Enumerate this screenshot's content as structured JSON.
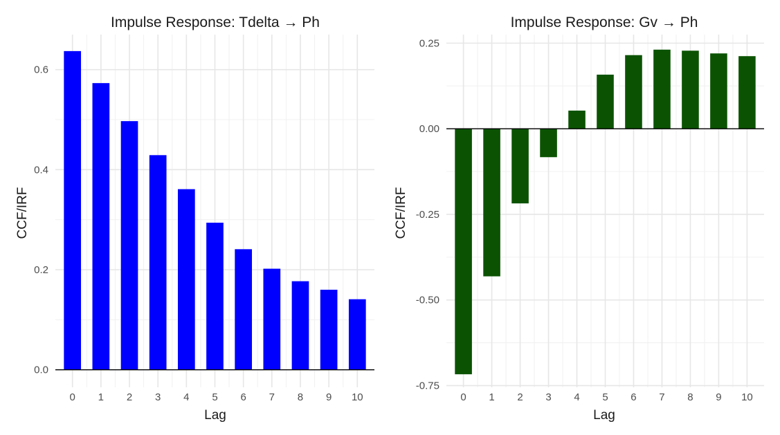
{
  "chart_data": [
    {
      "type": "bar",
      "title": "Impulse Response: Tdelta → Ph",
      "xlabel": "Lag",
      "ylabel": "CCF/IRF",
      "categories": [
        "0",
        "1",
        "2",
        "3",
        "4",
        "5",
        "6",
        "7",
        "8",
        "9",
        "10"
      ],
      "values": [
        0.637,
        0.573,
        0.497,
        0.429,
        0.361,
        0.294,
        0.241,
        0.202,
        0.177,
        0.16,
        0.141
      ],
      "ylim": [
        -0.035,
        0.67
      ],
      "yticks": [
        0.0,
        0.2,
        0.4,
        0.6
      ],
      "ytick_labels": [
        "0.0",
        "0.2",
        "0.4",
        "0.6"
      ],
      "color": "#0000ff",
      "grid": true
    },
    {
      "type": "bar",
      "title": "Impulse Response: Gv → Ph",
      "xlabel": "Lag",
      "ylabel": "CCF/IRF",
      "categories": [
        "0",
        "1",
        "2",
        "3",
        "4",
        "5",
        "6",
        "7",
        "8",
        "9",
        "10"
      ],
      "values": [
        -0.717,
        -0.431,
        -0.218,
        -0.083,
        0.053,
        0.158,
        0.215,
        0.231,
        0.228,
        0.22,
        0.212
      ],
      "ylim": [
        -0.755,
        0.275
      ],
      "yticks": [
        -0.75,
        -0.5,
        -0.25,
        0.0,
        0.25
      ],
      "ytick_labels": [
        "-0.75",
        "-0.50",
        "-0.25",
        "0.00",
        "0.25"
      ],
      "color": "#0b5302",
      "grid": true
    }
  ]
}
